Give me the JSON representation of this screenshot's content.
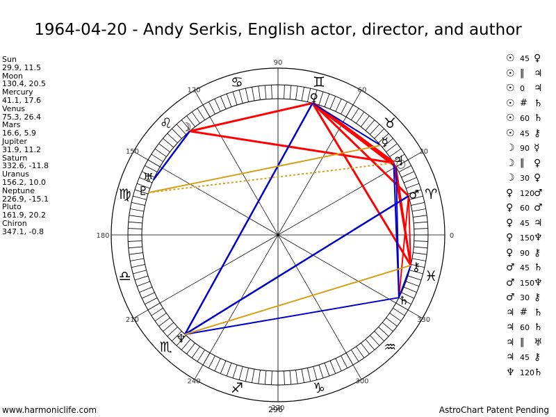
{
  "title": "1964-04-20 - Andy Serkis, English actor, director, and author",
  "planets": [
    {
      "name": "Sun",
      "values": "29.9, 11.5"
    },
    {
      "name": "Moon",
      "values": "130.4, 20.5"
    },
    {
      "name": "Mercury",
      "values": "41.1, 17.6"
    },
    {
      "name": "Venus",
      "values": "75.3, 26.4"
    },
    {
      "name": "Mars",
      "values": "16.6, 5.9"
    },
    {
      "name": "Jupiter",
      "values": "31.9, 11.2"
    },
    {
      "name": "Saturn",
      "values": "332.6, -11.8"
    },
    {
      "name": "Uranus",
      "values": "156.2, 10.0"
    },
    {
      "name": "Neptune",
      "values": "226.9, -15.1"
    },
    {
      "name": "Pluto",
      "values": "161.9, 20.2"
    },
    {
      "name": "Chiron",
      "values": "347.1, -0.8"
    }
  ],
  "aspects": [
    {
      "p1": "☉",
      "sym": "45",
      "p2": "♀"
    },
    {
      "p1": "☉",
      "sym": "‖",
      "p2": "♃"
    },
    {
      "p1": "☉",
      "sym": "0",
      "p2": "♃"
    },
    {
      "p1": "☉",
      "sym": "#",
      "p2": "♄"
    },
    {
      "p1": "☉",
      "sym": "60",
      "p2": "♄"
    },
    {
      "p1": "☉",
      "sym": "45",
      "p2": "⚷"
    },
    {
      "p1": "☽",
      "sym": "90",
      "p2": "☿"
    },
    {
      "p1": "☽",
      "sym": "‖",
      "p2": "♀"
    },
    {
      "p1": "☽",
      "sym": "30",
      "p2": "♀"
    },
    {
      "p1": "♀",
      "sym": "120",
      "p2": "♂"
    },
    {
      "p1": "♀",
      "sym": "60",
      "p2": "♂"
    },
    {
      "p1": "♀",
      "sym": "45",
      "p2": "♃"
    },
    {
      "p1": "♀",
      "sym": "150",
      "p2": "♆"
    },
    {
      "p1": "♀",
      "sym": "90",
      "p2": "⚷"
    },
    {
      "p1": "♂",
      "sym": "45",
      "p2": "♄"
    },
    {
      "p1": "♂",
      "sym": "150",
      "p2": "♆"
    },
    {
      "p1": "♂",
      "sym": "30",
      "p2": "⚷"
    },
    {
      "p1": "♃",
      "sym": "#",
      "p2": "♄"
    },
    {
      "p1": "♃",
      "sym": "60",
      "p2": "♄"
    },
    {
      "p1": "♃",
      "sym": "‖",
      "p2": "♅"
    },
    {
      "p1": "♃",
      "sym": "45",
      "p2": "⚷"
    },
    {
      "p1": "♆",
      "sym": "120",
      "p2": "♄"
    }
  ],
  "wheel": {
    "degree_labels": [
      "0",
      "30",
      "60",
      "90",
      "120",
      "150",
      "180",
      "210",
      "240",
      "270",
      "300",
      "330"
    ],
    "marker_label": "296",
    "sign_glyphs": [
      "♈",
      "♉",
      "♊",
      "♋",
      "♌",
      "♍",
      "♎",
      "♏",
      "♐",
      "♑",
      "♒",
      "♓"
    ],
    "planet_glyphs": [
      {
        "glyph": "☉",
        "lon": 29.9
      },
      {
        "glyph": "☽",
        "lon": 130.4
      },
      {
        "glyph": "☿",
        "lon": 41.1
      },
      {
        "glyph": "♀",
        "lon": 75.3
      },
      {
        "glyph": "♂",
        "lon": 16.6
      },
      {
        "glyph": "♃",
        "lon": 31.9
      },
      {
        "glyph": "♄",
        "lon": 332.6
      },
      {
        "glyph": "♅",
        "lon": 156.2
      },
      {
        "glyph": "♆",
        "lon": 226.9
      },
      {
        "glyph": "♇",
        "lon": 161.9
      },
      {
        "glyph": "⚷",
        "lon": 347.1
      }
    ],
    "colors": {
      "red": "#ff0000",
      "blue": "#0000cc",
      "gold": "#d4a017",
      "ring": "#000000"
    }
  },
  "footer": {
    "left": "www.harmoniclife.com",
    "right": "AstroChart Patent Pending"
  }
}
